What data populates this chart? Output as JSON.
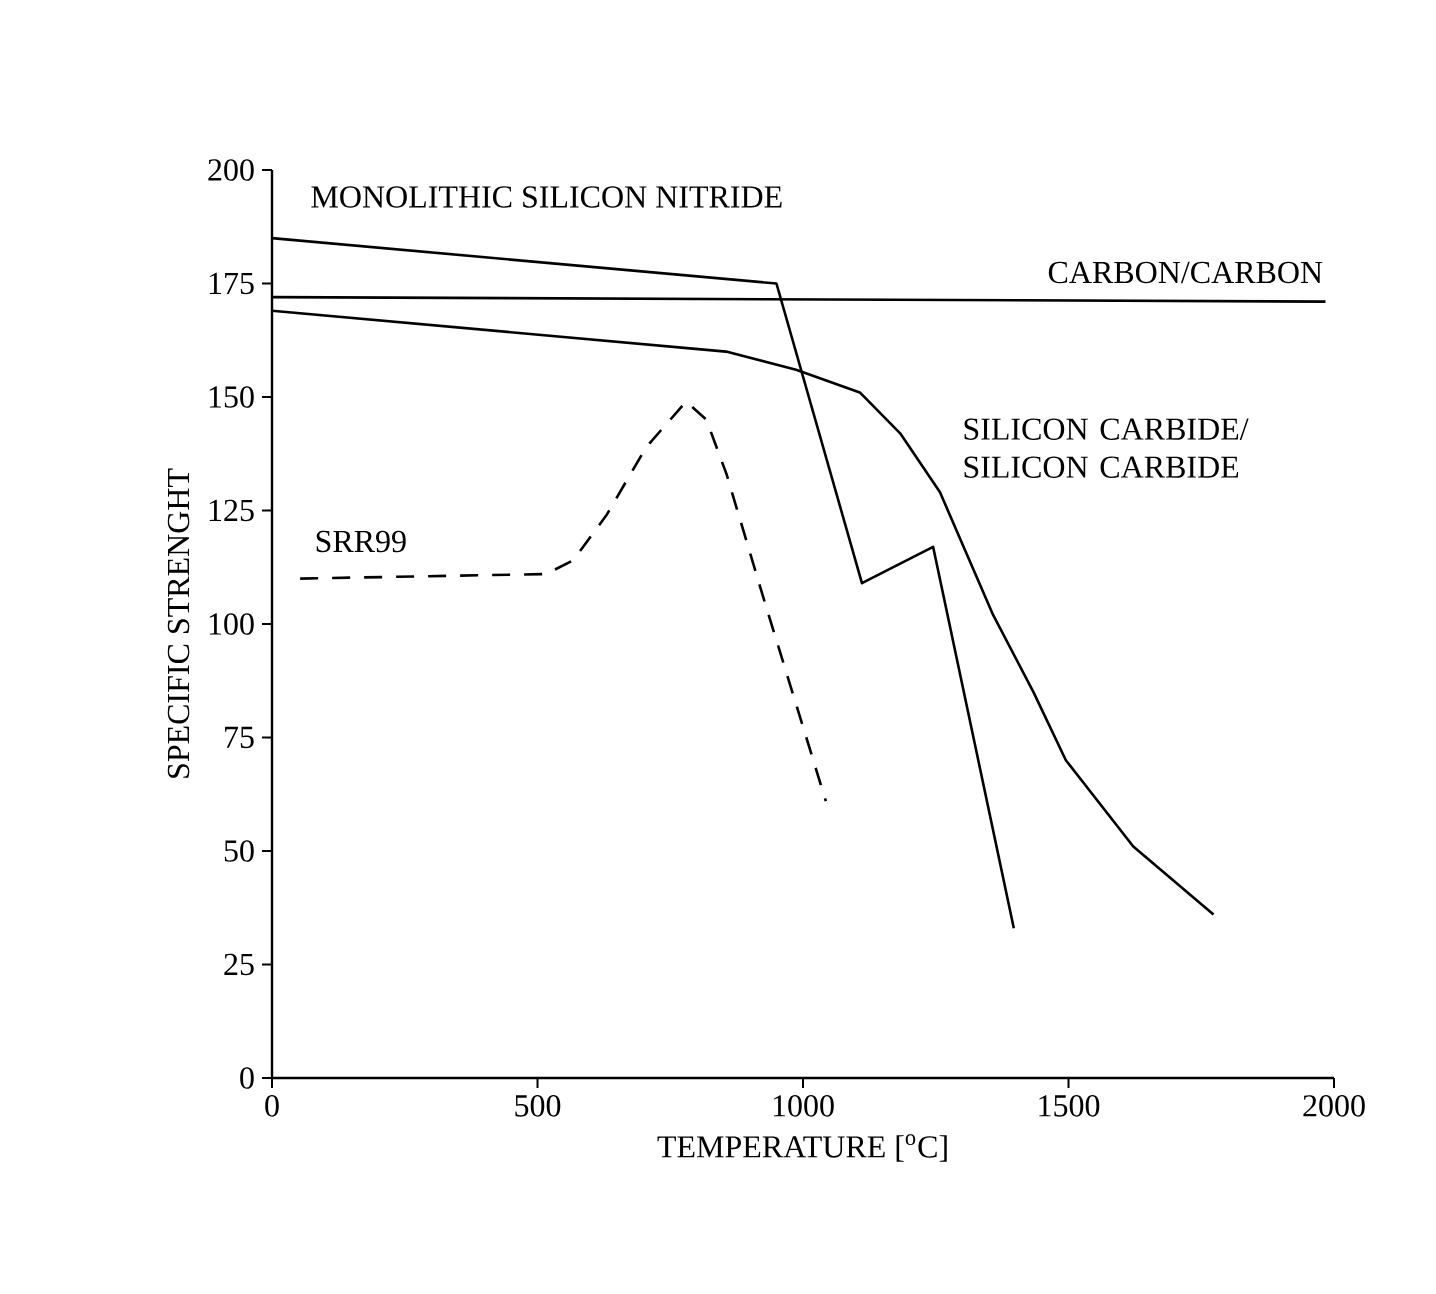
{
  "chart_data": {
    "type": "line",
    "xlabel": "TEMPERATURE [$^{o}$C]",
    "ylabel": "SPECIFIC STRENGHT",
    "xlim": [
      0,
      2000
    ],
    "ylim": [
      0,
      200
    ],
    "xticks": [
      0,
      500,
      1000,
      1500,
      2000
    ],
    "yticks": [
      0,
      25,
      50,
      75,
      100,
      125,
      150,
      175,
      200
    ],
    "grid": false,
    "legend": false,
    "marker": "none",
    "series": [
      {
        "name": "MONOLITHIC SILICON NITRIDE",
        "color": "#000000",
        "line_style": "solid",
        "x": [
          0,
          950,
          1111,
          1245,
          1397
        ],
        "values": [
          185,
          175,
          109,
          117,
          33
        ]
      },
      {
        "name": "CARBON/CARBON",
        "color": "#000000",
        "line_style": "solid",
        "x": [
          0,
          1984
        ],
        "values": [
          172,
          171
        ]
      },
      {
        "name": "SILICON CARBIDE/ SILICON CARBIDE",
        "color": "#000000",
        "line_style": "solid",
        "x": [
          0,
          855,
          987,
          1107,
          1183,
          1258,
          1358,
          1434,
          1495,
          1622,
          1773
        ],
        "values": [
          169,
          160,
          156,
          151,
          142,
          129,
          102,
          85,
          70,
          51,
          36
        ]
      },
      {
        "name": "SRR99",
        "color": "#000000",
        "line_style": "dashed",
        "x": [
          53,
          516,
          567,
          630,
          705,
          780,
          818,
          856,
          930,
          1043
        ],
        "values": [
          110,
          111,
          114,
          124,
          139,
          149,
          145,
          133,
          104,
          61
        ]
      }
    ]
  }
}
